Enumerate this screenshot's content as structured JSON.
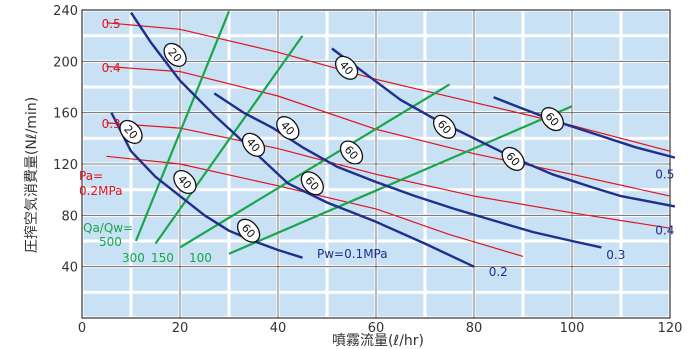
{
  "chart_data": {
    "type": "line",
    "title": "",
    "xlabel": "噴霧流量(ℓ/hr)",
    "ylabel": "圧搾空気消費量(Nℓ/min)",
    "xlim": [
      0,
      120
    ],
    "ylim": [
      0,
      240
    ],
    "xticks": [
      "0",
      "20",
      "40",
      "60",
      "80",
      "100",
      "120"
    ],
    "yticks": [
      "40",
      "80",
      "120",
      "160",
      "200",
      "240"
    ],
    "grid": true,
    "colors": {
      "blue": "#1f2f8c",
      "red": "#e0141e",
      "green": "#1aa64a",
      "grid_cell": "#c8e1f5"
    },
    "labels": {
      "pa_title": "Pa=",
      "pa_value": "0.2MPa",
      "qa_title": "Qa/Qw=",
      "qa_500": "500",
      "qa_300": "300",
      "qa_150": "150",
      "qa_100": "100",
      "pw_title": "Pw=0.1MPa"
    },
    "series": [
      {
        "group": "pw",
        "name": "0.1",
        "color": "blue",
        "points": [
          [
            10,
            238
          ],
          [
            14,
            215
          ],
          [
            20,
            185
          ],
          [
            27,
            158
          ],
          [
            35,
            130
          ],
          [
            42,
            105
          ],
          [
            50,
            90
          ],
          [
            60,
            75
          ],
          [
            70,
            58
          ],
          [
            80,
            40
          ]
        ],
        "markers": [
          [
            19,
            205,
            "20"
          ],
          [
            35,
            135,
            "40"
          ],
          [
            47,
            105,
            "60"
          ]
        ]
      },
      {
        "group": "pw",
        "name": "0.2",
        "color": "blue",
        "points": [
          [
            6,
            160
          ],
          [
            10,
            130
          ],
          [
            15,
            110
          ],
          [
            20,
            95
          ],
          [
            25,
            80
          ],
          [
            30,
            68
          ],
          [
            35,
            60
          ],
          [
            40,
            53
          ],
          [
            45,
            47
          ]
        ],
        "markers": [
          [
            10,
            145,
            "20"
          ],
          [
            21,
            106,
            "40"
          ],
          [
            34,
            68,
            "60"
          ]
        ]
      },
      {
        "group": "pw",
        "name": "0.3",
        "color": "blue",
        "points": [
          [
            51,
            210
          ],
          [
            58,
            190
          ],
          [
            65,
            170
          ],
          [
            72,
            155
          ],
          [
            80,
            140
          ],
          [
            88,
            125
          ],
          [
            96,
            112
          ],
          [
            104,
            102
          ],
          [
            110,
            95
          ],
          [
            121,
            87
          ]
        ],
        "markers": [
          [
            54,
            195,
            "40"
          ],
          [
            74,
            149,
            "60"
          ],
          [
            88,
            124,
            "60"
          ]
        ]
      },
      {
        "group": "pw",
        "name": "0.4",
        "color": "blue",
        "points": [
          [
            84,
            172
          ],
          [
            90,
            163
          ],
          [
            97,
            153
          ],
          [
            105,
            143
          ],
          [
            113,
            133
          ],
          [
            121,
            125
          ]
        ],
        "markers": [
          [
            96,
            155,
            "60"
          ]
        ]
      },
      {
        "group": "pw",
        "name": "0.5",
        "color": "blue",
        "points": [
          [
            27,
            175
          ],
          [
            33,
            160
          ],
          [
            39,
            148
          ],
          [
            45,
            133
          ],
          [
            52,
            118
          ],
          [
            60,
            106
          ],
          [
            68,
            95
          ],
          [
            76,
            85
          ],
          [
            84,
            76
          ],
          [
            92,
            67
          ],
          [
            100,
            60
          ],
          [
            106,
            55
          ]
        ],
        "markers": [
          [
            42,
            148,
            "40"
          ],
          [
            55,
            129,
            "60"
          ]
        ]
      },
      {
        "group": "pa",
        "name": "0.5",
        "color": "red",
        "points": [
          [
            5,
            230
          ],
          [
            20,
            225
          ],
          [
            40,
            207
          ],
          [
            60,
            186
          ],
          [
            80,
            168
          ],
          [
            100,
            150
          ],
          [
            120,
            130
          ]
        ]
      },
      {
        "group": "pa",
        "name": "0.4",
        "color": "red",
        "points": [
          [
            5,
            196
          ],
          [
            20,
            192
          ],
          [
            40,
            173
          ],
          [
            60,
            147
          ],
          [
            80,
            128
          ],
          [
            100,
            112
          ],
          [
            120,
            95
          ]
        ]
      },
      {
        "group": "pa",
        "name": "0.3",
        "color": "red",
        "points": [
          [
            5,
            152
          ],
          [
            20,
            148
          ],
          [
            40,
            132
          ],
          [
            60,
            112
          ],
          [
            80,
            95
          ],
          [
            100,
            82
          ],
          [
            120,
            70
          ]
        ]
      },
      {
        "group": "pa",
        "name": "0.2",
        "color": "red",
        "points": [
          [
            5,
            126
          ],
          [
            20,
            120
          ],
          [
            40,
            103
          ],
          [
            60,
            85
          ],
          [
            75,
            65
          ],
          [
            90,
            48
          ]
        ]
      },
      {
        "group": "qa",
        "name": "500",
        "color": "green",
        "points": [
          [
            11,
            60
          ],
          [
            30,
            239
          ]
        ]
      },
      {
        "group": "qa",
        "name": "300",
        "color": "green",
        "points": [
          [
            15,
            58
          ],
          [
            45,
            220
          ]
        ]
      },
      {
        "group": "qa",
        "name": "150",
        "color": "green",
        "points": [
          [
            20,
            55
          ],
          [
            75,
            182
          ]
        ]
      },
      {
        "group": "qa",
        "name": "100",
        "color": "green",
        "points": [
          [
            30,
            50
          ],
          [
            100,
            165
          ]
        ]
      }
    ],
    "end_labels": [
      {
        "text": "0.5",
        "color": "red",
        "at": [
          4,
          229
        ]
      },
      {
        "text": "0.4",
        "color": "red",
        "at": [
          4,
          195
        ]
      },
      {
        "text": "0.3",
        "color": "red",
        "at": [
          4,
          151
        ]
      },
      {
        "text": "0.2",
        "color": "blue",
        "at": [
          83,
          36
        ]
      },
      {
        "text": "0.3",
        "color": "blue",
        "at": [
          107,
          49
        ]
      },
      {
        "text": "0.4",
        "color": "blue",
        "at": [
          117,
          68
        ]
      },
      {
        "text": "0.5",
        "color": "blue",
        "at": [
          117,
          112
        ]
      }
    ]
  }
}
